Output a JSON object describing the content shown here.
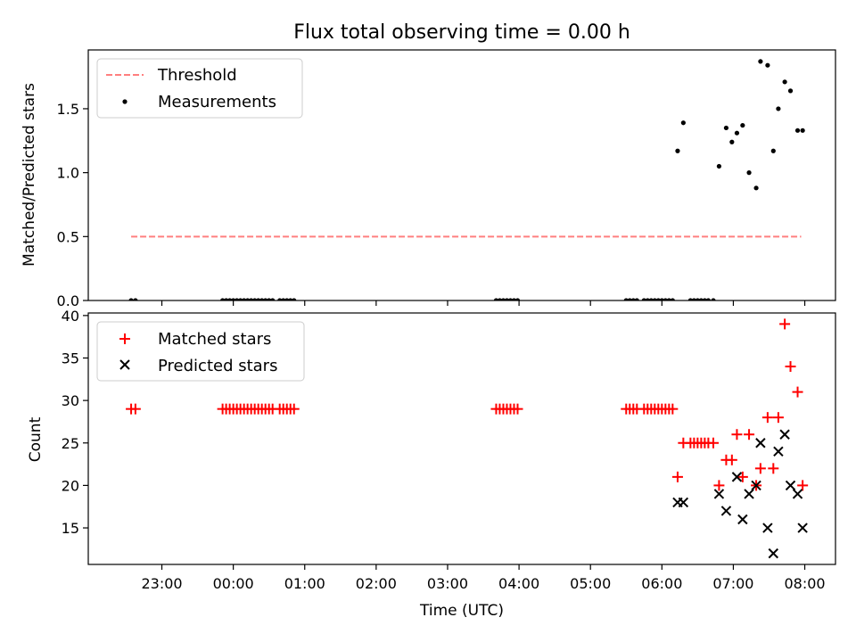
{
  "figure_title": "Flux total observing time = 0.00 h",
  "chart_data": [
    {
      "type": "scatter",
      "title": "Flux total observing time = 0.00 h",
      "xlabel": "",
      "ylabel": "Matched/Predicted stars",
      "x_unit": "hours relative to 00:00 UTC (day of 00:00 tick)",
      "xlim": [
        -2.03,
        8.43
      ],
      "ylim": [
        0.0,
        1.96
      ],
      "yticks": [
        0.0,
        0.5,
        1.0,
        1.5
      ],
      "ytick_labels": [
        "0.0",
        "0.5",
        "1.0",
        "1.5"
      ],
      "legend_position": "upper left",
      "threshold": {
        "name": "Threshold",
        "value": 0.5,
        "x_range": [
          -1.43,
          7.95
        ],
        "color": "#ff7f7f",
        "style": "dashed"
      },
      "series": [
        {
          "name": "Measurements",
          "marker": "dot",
          "color": "#000000",
          "x": [
            -1.43,
            -1.37,
            -0.15,
            -0.1,
            -0.05,
            0.0,
            0.05,
            0.1,
            0.15,
            0.2,
            0.25,
            0.3,
            0.35,
            0.4,
            0.45,
            0.5,
            0.55,
            0.65,
            0.7,
            0.75,
            0.8,
            0.85,
            3.68,
            3.73,
            3.78,
            3.83,
            3.88,
            3.93,
            3.98,
            5.5,
            5.55,
            5.6,
            5.65,
            5.75,
            5.8,
            5.85,
            5.9,
            5.95,
            6.0,
            6.05,
            6.1,
            6.15,
            6.22,
            6.3,
            6.4,
            6.45,
            6.5,
            6.55,
            6.6,
            6.65,
            6.72,
            6.8,
            6.9,
            6.98,
            7.05,
            7.13,
            7.22,
            7.32,
            7.38,
            7.48,
            7.56,
            7.63,
            7.72,
            7.8,
            7.9,
            7.97
          ],
          "y": [
            0.0,
            0.0,
            0.0,
            0.0,
            0.0,
            0.0,
            0.0,
            0.0,
            0.0,
            0.0,
            0.0,
            0.0,
            0.0,
            0.0,
            0.0,
            0.0,
            0.0,
            0.0,
            0.0,
            0.0,
            0.0,
            0.0,
            0.0,
            0.0,
            0.0,
            0.0,
            0.0,
            0.0,
            0.0,
            0.0,
            0.0,
            0.0,
            0.0,
            0.0,
            0.0,
            0.0,
            0.0,
            0.0,
            0.0,
            0.0,
            0.0,
            0.0,
            1.17,
            1.39,
            0.0,
            0.0,
            0.0,
            0.0,
            0.0,
            0.0,
            0.0,
            1.05,
            1.35,
            1.24,
            1.31,
            1.37,
            1.0,
            0.88,
            1.87,
            1.84,
            1.17,
            1.5,
            1.71,
            1.64,
            1.33,
            1.33
          ]
        }
      ]
    },
    {
      "type": "scatter",
      "title": "",
      "xlabel": "Time (UTC)",
      "ylabel": "Count",
      "x_unit": "hours relative to 00:00 UTC (day of 00:00 tick)",
      "xlim": [
        -2.03,
        8.43
      ],
      "ylim": [
        10.7,
        40.3
      ],
      "yticks": [
        15,
        20,
        25,
        30,
        35,
        40
      ],
      "ytick_labels": [
        "15",
        "20",
        "25",
        "30",
        "35",
        "40"
      ],
      "xticks": [
        -1,
        0,
        1,
        2,
        3,
        4,
        5,
        6,
        7,
        8
      ],
      "xtick_labels": [
        "23:00",
        "00:00",
        "01:00",
        "02:00",
        "03:00",
        "04:00",
        "05:00",
        "06:00",
        "07:00",
        "08:00"
      ],
      "legend_position": "upper left",
      "series": [
        {
          "name": "Matched stars",
          "marker": "plus",
          "color": "#ff0000",
          "x": [
            -1.43,
            -1.37,
            -0.15,
            -0.1,
            -0.05,
            0.0,
            0.05,
            0.1,
            0.15,
            0.2,
            0.25,
            0.3,
            0.35,
            0.4,
            0.45,
            0.5,
            0.55,
            0.65,
            0.7,
            0.75,
            0.8,
            0.85,
            3.68,
            3.73,
            3.78,
            3.83,
            3.88,
            3.93,
            3.98,
            5.5,
            5.55,
            5.6,
            5.65,
            5.75,
            5.8,
            5.85,
            5.9,
            5.95,
            6.0,
            6.05,
            6.1,
            6.15,
            6.22,
            6.3,
            6.4,
            6.45,
            6.5,
            6.55,
            6.6,
            6.65,
            6.72,
            6.8,
            6.9,
            6.98,
            7.05,
            7.13,
            7.22,
            7.32,
            7.38,
            7.48,
            7.56,
            7.63,
            7.72,
            7.8,
            7.9,
            7.97
          ],
          "y": [
            29,
            29,
            29,
            29,
            29,
            29,
            29,
            29,
            29,
            29,
            29,
            29,
            29,
            29,
            29,
            29,
            29,
            29,
            29,
            29,
            29,
            29,
            29,
            29,
            29,
            29,
            29,
            29,
            29,
            29,
            29,
            29,
            29,
            29,
            29,
            29,
            29,
            29,
            29,
            29,
            29,
            29,
            21,
            25,
            25,
            25,
            25,
            25,
            25,
            25,
            25,
            20,
            23,
            23,
            26,
            21,
            26,
            20,
            22,
            28,
            22,
            28,
            39,
            34,
            31,
            20
          ]
        },
        {
          "name": "Predicted stars",
          "marker": "x",
          "color": "#000000",
          "x": [
            6.22,
            6.3,
            6.8,
            6.9,
            7.05,
            7.13,
            7.22,
            7.32,
            7.38,
            7.48,
            7.56,
            7.63,
            7.72,
            7.8,
            7.9,
            7.97
          ],
          "y": [
            18,
            18,
            19,
            17,
            21,
            16,
            19,
            20,
            25,
            15,
            12,
            24,
            26,
            20,
            19,
            15
          ]
        }
      ]
    }
  ]
}
